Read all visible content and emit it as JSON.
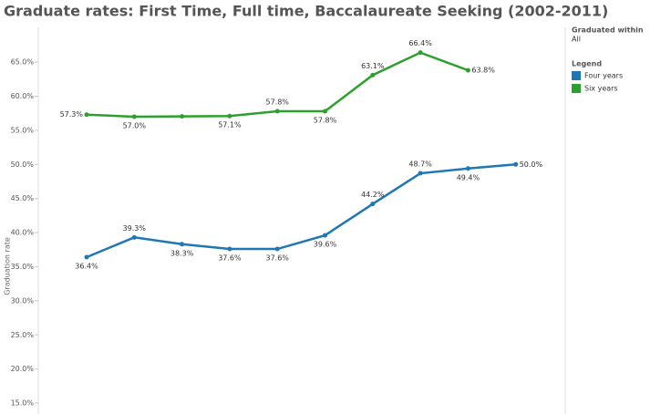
{
  "chart_data": {
    "type": "line",
    "title": "Graduate rates: First Time, Full time, Baccalaureate Seeking (2002-2011)",
    "y_label": "Graduation rate",
    "filter_title": "Graduated within",
    "filter_value": "All",
    "legend_title": "Legend",
    "series": [
      {
        "name": "Four years",
        "color": "#1f77b4",
        "values": [
          36.4,
          39.3,
          38.3,
          37.6,
          37.6,
          39.6,
          44.2,
          48.7,
          49.4,
          50.0
        ],
        "value_labels": [
          "36.4%",
          "39.3%",
          "38.3%",
          "37.6%",
          "37.6%",
          "39.6%",
          "44.2%",
          "48.7%",
          "49.4%",
          "50.0%"
        ]
      },
      {
        "name": "Six years",
        "color": "#2ca02c",
        "values": [
          57.3,
          57.0,
          57.05,
          57.1,
          57.8,
          57.8,
          63.1,
          66.4,
          63.8,
          null
        ],
        "value_labels": [
          "57.3%",
          "57.0%",
          null,
          "57.1%",
          "57.8%",
          "57.8%",
          "63.1%",
          "66.4%",
          "63.8%",
          null
        ]
      }
    ],
    "ylim": [
      13.4,
      70.1
    ],
    "yticks": [
      {
        "value": 15,
        "label": "15.0%"
      },
      {
        "value": 20,
        "label": "20.0%"
      },
      {
        "value": 25,
        "label": "25.0%"
      },
      {
        "value": 30,
        "label": "30.0%"
      },
      {
        "value": 35,
        "label": "35.0%"
      },
      {
        "value": 40,
        "label": "40.0%"
      },
      {
        "value": 45,
        "label": "45.0%"
      },
      {
        "value": 50,
        "label": "50.0%"
      },
      {
        "value": 55,
        "label": "55.0%"
      },
      {
        "value": 60,
        "label": "60.0%"
      },
      {
        "value": 65,
        "label": "65.0%"
      }
    ],
    "legend_position": "right"
  }
}
